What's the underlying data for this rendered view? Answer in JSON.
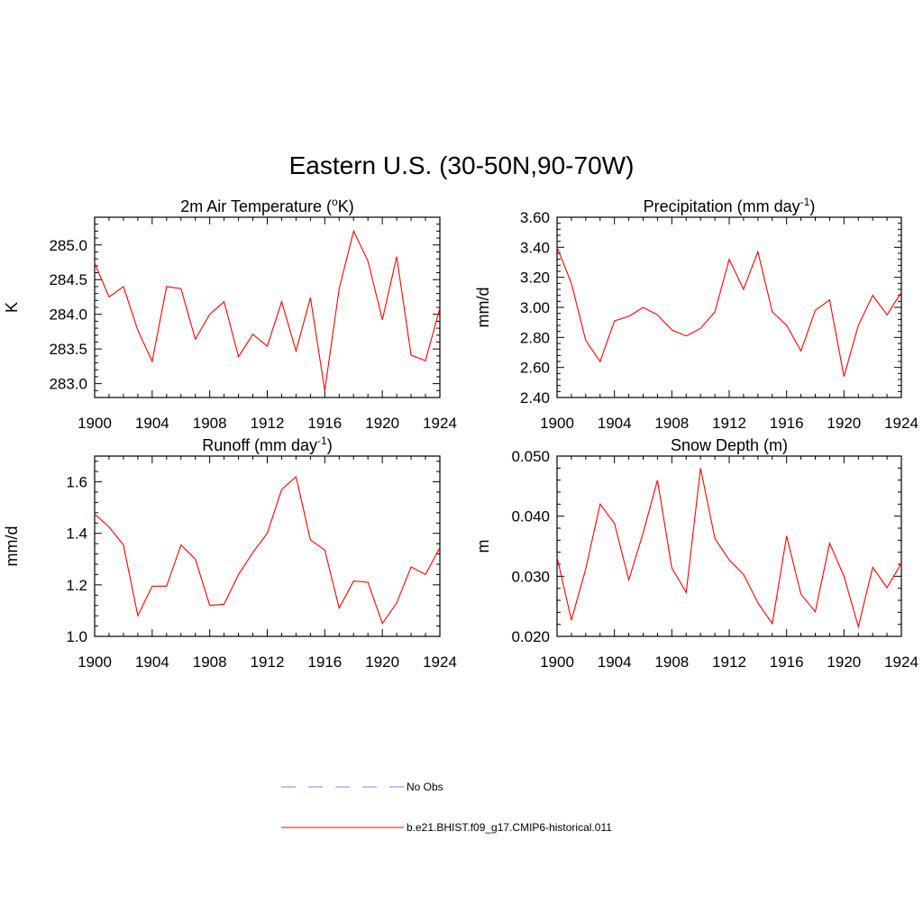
{
  "title": "Eastern U.S. (30-50N,90-70W)",
  "colors": {
    "model": "#ff0000",
    "obs": "#9999ff",
    "axis": "#000000"
  },
  "legend": [
    {
      "label": "No Obs",
      "style": "dashed",
      "color": "#9999ff"
    },
    {
      "label": "b.e21.BHIST.f09_g17.CMIP6-historical.011",
      "style": "solid",
      "color": "#ff0000"
    }
  ],
  "chart_data": [
    {
      "type": "line",
      "title": "2m Air Temperature (",
      "title_sup": "o",
      "title_after": "K)",
      "ylabel": "K",
      "xlim": [
        1900,
        1924
      ],
      "ylim": [
        282.8,
        285.4
      ],
      "xticks": [
        "1900",
        "1904",
        "1908",
        "1912",
        "1916",
        "1920",
        "1924"
      ],
      "yticks": [
        "283.0",
        "283.5",
        "284.0",
        "284.5",
        "285.0"
      ],
      "x": [
        1900,
        1901,
        1902,
        1903,
        1904,
        1905,
        1906,
        1907,
        1908,
        1909,
        1910,
        1911,
        1912,
        1913,
        1914,
        1915,
        1916,
        1917,
        1918,
        1919,
        1920,
        1921,
        1922,
        1923,
        1924
      ],
      "series": [
        {
          "values": [
            284.74,
            284.25,
            284.4,
            283.77,
            283.32,
            284.4,
            284.37,
            283.64,
            284.0,
            284.18,
            283.39,
            283.71,
            283.54,
            284.18,
            283.47,
            284.24,
            282.9,
            284.37,
            285.2,
            284.77,
            283.92,
            284.83,
            283.41,
            283.33,
            284.09
          ]
        }
      ]
    },
    {
      "type": "line",
      "title": "Precipitation (mm day",
      "title_sup": "-1",
      "title_after": ")",
      "ylabel": "mm/d",
      "xlim": [
        1900,
        1924
      ],
      "ylim": [
        2.4,
        3.6
      ],
      "xticks": [
        "1900",
        "1904",
        "1908",
        "1912",
        "1916",
        "1920",
        "1924"
      ],
      "yticks": [
        "2.40",
        "2.60",
        "2.80",
        "3.00",
        "3.20",
        "3.40",
        "3.60"
      ],
      "x": [
        1900,
        1901,
        1902,
        1903,
        1904,
        1905,
        1906,
        1907,
        1908,
        1909,
        1910,
        1911,
        1912,
        1913,
        1914,
        1915,
        1916,
        1917,
        1918,
        1919,
        1920,
        1921,
        1922,
        1923,
        1924
      ],
      "series": [
        {
          "values": [
            3.4,
            3.16,
            2.78,
            2.64,
            2.91,
            2.94,
            3.0,
            2.95,
            2.85,
            2.81,
            2.86,
            2.97,
            3.32,
            3.12,
            3.37,
            2.97,
            2.88,
            2.71,
            2.98,
            3.05,
            2.54,
            2.88,
            3.08,
            2.95,
            3.1
          ]
        }
      ]
    },
    {
      "type": "line",
      "title": "Runoff (mm day",
      "title_sup": "-1",
      "title_after": ")",
      "ylabel": "mm/d",
      "xlim": [
        1900,
        1924
      ],
      "ylim": [
        1.0,
        1.7
      ],
      "xticks": [
        "1900",
        "1904",
        "1908",
        "1912",
        "1916",
        "1920",
        "1924"
      ],
      "yticks": [
        "1.0",
        "1.2",
        "1.4",
        "1.6"
      ],
      "x": [
        1900,
        1901,
        1902,
        1903,
        1904,
        1905,
        1906,
        1907,
        1908,
        1909,
        1910,
        1911,
        1912,
        1913,
        1914,
        1915,
        1916,
        1917,
        1918,
        1919,
        1920,
        1921,
        1922,
        1923,
        1924
      ],
      "series": [
        {
          "values": [
            1.475,
            1.425,
            1.355,
            1.08,
            1.195,
            1.195,
            1.355,
            1.3,
            1.12,
            1.125,
            1.24,
            1.325,
            1.4,
            1.57,
            1.62,
            1.375,
            1.335,
            1.11,
            1.215,
            1.21,
            1.05,
            1.13,
            1.27,
            1.24,
            1.345
          ]
        }
      ]
    },
    {
      "type": "line",
      "title": "Snow Depth (m)",
      "title_sup": "",
      "title_after": "",
      "ylabel": "m",
      "xlim": [
        1900,
        1924
      ],
      "ylim": [
        0.02,
        0.05
      ],
      "xticks": [
        "1900",
        "1904",
        "1908",
        "1912",
        "1916",
        "1920",
        "1924"
      ],
      "yticks": [
        "0.020",
        "0.030",
        "0.040",
        "0.050"
      ],
      "x": [
        1900,
        1901,
        1902,
        1903,
        1904,
        1905,
        1906,
        1907,
        1908,
        1909,
        1910,
        1911,
        1912,
        1913,
        1914,
        1915,
        1916,
        1917,
        1918,
        1919,
        1920,
        1921,
        1922,
        1923,
        1924
      ],
      "series": [
        {
          "values": [
            0.0332,
            0.0227,
            0.0312,
            0.042,
            0.0388,
            0.0294,
            0.0372,
            0.046,
            0.0314,
            0.0273,
            0.048,
            0.0363,
            0.0327,
            0.0303,
            0.0256,
            0.0221,
            0.0367,
            0.027,
            0.0241,
            0.0355,
            0.03,
            0.0216,
            0.0315,
            0.0281,
            0.0322
          ]
        }
      ]
    }
  ]
}
